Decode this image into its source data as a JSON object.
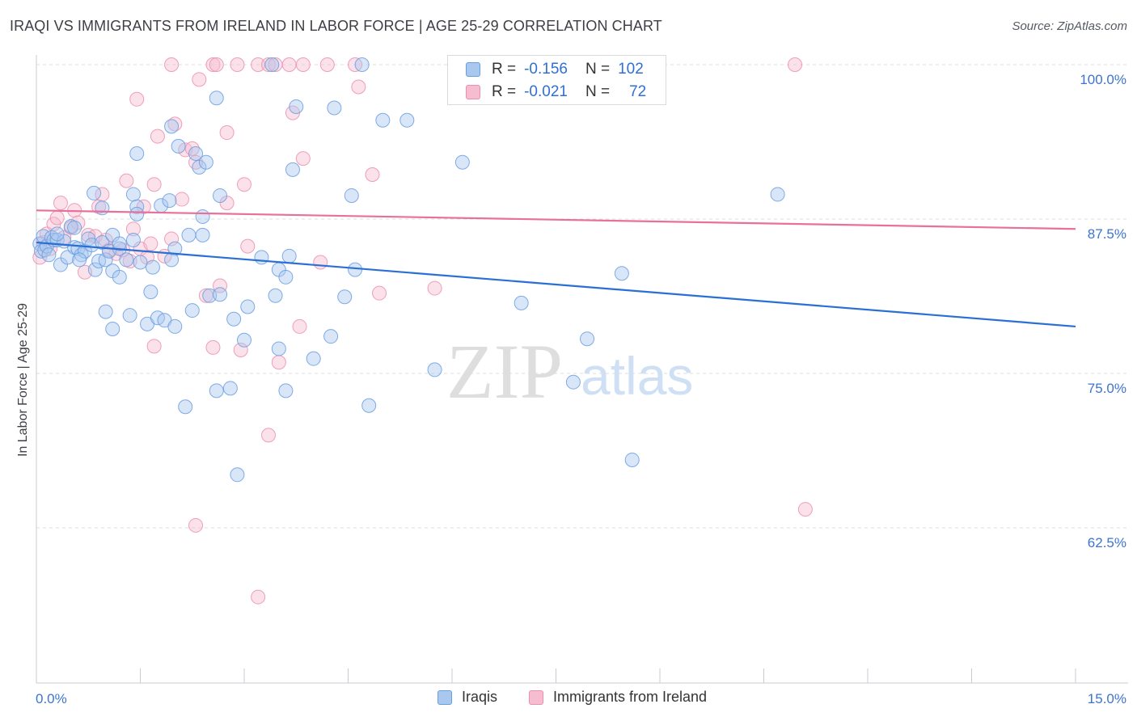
{
  "title": "IRAQI VS IMMIGRANTS FROM IRELAND IN LABOR FORCE | AGE 25-29 CORRELATION CHART",
  "source": "Source: ZipAtlas.com",
  "watermark": {
    "zip": "ZIP",
    "atlas": "atlas"
  },
  "legend": {
    "rows": [
      {
        "r_label": "R =",
        "r_value": "-0.156",
        "n_label": "N =",
        "n_value": "102"
      },
      {
        "r_label": "R =",
        "r_value": "-0.021",
        "n_label": "N =",
        "n_value": "72"
      }
    ]
  },
  "colors": {
    "iraqis_fill": "#a9c8f0",
    "iraqis_stroke": "#6b9ee0",
    "iraqis_line": "#2a6fd4",
    "ireland_fill": "#f6bcd0",
    "ireland_stroke": "#ec8fae",
    "ireland_line": "#e8709a",
    "tick_label": "#3d74d0",
    "grid": "#d9dce0"
  },
  "chart_data": {
    "type": "scatter",
    "title": "IRAQI VS IMMIGRANTS FROM IRELAND IN LABOR FORCE | AGE 25-29 CORRELATION CHART",
    "xlabel": "",
    "ylabel": "In Labor Force | Age 25-29",
    "xlim": [
      0,
      15
    ],
    "ylim": [
      50,
      102
    ],
    "x_tick_labels": [
      {
        "value": 0,
        "label": "0.0%"
      },
      {
        "value": 15,
        "label": "15.0%"
      }
    ],
    "y_tick_labels": [
      {
        "value": 62.5,
        "label": "62.5%"
      },
      {
        "value": 75.0,
        "label": "75.0%"
      },
      {
        "value": 87.5,
        "label": "87.5%"
      },
      {
        "value": 100.0,
        "label": "100.0%"
      }
    ],
    "grid": true,
    "legend_position": "top-center",
    "series": [
      {
        "name": "Iraqis",
        "trend": {
          "x": [
            0,
            15
          ],
          "y": [
            85.6,
            78.8
          ]
        },
        "points": [
          [
            0.05,
            85.5
          ],
          [
            0.07,
            84.9
          ],
          [
            0.1,
            86.1
          ],
          [
            0.12,
            85.0
          ],
          [
            0.15,
            85.3
          ],
          [
            0.18,
            84.6
          ],
          [
            0.22,
            86.0
          ],
          [
            0.25,
            85.8
          ],
          [
            0.3,
            85.8
          ],
          [
            0.35,
            83.8
          ],
          [
            0.4,
            85.7
          ],
          [
            0.45,
            84.4
          ],
          [
            0.5,
            86.9
          ],
          [
            0.55,
            85.2
          ],
          [
            0.6,
            85.1
          ],
          [
            0.65,
            84.6
          ],
          [
            0.7,
            84.9
          ],
          [
            0.75,
            85.9
          ],
          [
            0.8,
            85.4
          ],
          [
            0.85,
            83.4
          ],
          [
            0.9,
            84.1
          ],
          [
            0.95,
            85.6
          ],
          [
            1.0,
            84.2
          ],
          [
            1.05,
            84.9
          ],
          [
            1.1,
            83.3
          ],
          [
            1.2,
            85.1
          ],
          [
            1.3,
            84.2
          ],
          [
            1.4,
            85.8
          ],
          [
            1.5,
            84.0
          ],
          [
            0.95,
            88.4
          ],
          [
            0.83,
            89.6
          ],
          [
            1.4,
            89.5
          ],
          [
            1.8,
            88.6
          ],
          [
            1.45,
            88.5
          ],
          [
            1.92,
            89.0
          ],
          [
            1.95,
            95.0
          ],
          [
            1.45,
            92.8
          ],
          [
            2.05,
            93.4
          ],
          [
            2.3,
            92.8
          ],
          [
            2.35,
            91.7
          ],
          [
            2.45,
            92.1
          ],
          [
            2.6,
            97.3
          ],
          [
            2.65,
            89.4
          ],
          [
            2.4,
            86.2
          ],
          [
            2.2,
            86.2
          ],
          [
            2.0,
            85.1
          ],
          [
            1.95,
            84.2
          ],
          [
            1.2,
            82.8
          ],
          [
            1.0,
            80.0
          ],
          [
            1.1,
            78.6
          ],
          [
            1.35,
            79.7
          ],
          [
            1.6,
            79.0
          ],
          [
            1.75,
            79.5
          ],
          [
            1.85,
            79.3
          ],
          [
            2.0,
            78.8
          ],
          [
            2.25,
            80.1
          ],
          [
            2.5,
            81.3
          ],
          [
            2.65,
            81.4
          ],
          [
            2.85,
            79.4
          ],
          [
            3.05,
            80.4
          ],
          [
            1.65,
            81.6
          ],
          [
            2.4,
            87.7
          ],
          [
            3.0,
            77.7
          ],
          [
            3.25,
            84.4
          ],
          [
            3.5,
            83.4
          ],
          [
            3.6,
            82.8
          ],
          [
            3.65,
            84.5
          ],
          [
            3.5,
            77.0
          ],
          [
            3.6,
            73.6
          ],
          [
            2.6,
            73.6
          ],
          [
            2.8,
            73.8
          ],
          [
            2.15,
            72.3
          ],
          [
            2.9,
            66.8
          ],
          [
            4.0,
            76.2
          ],
          [
            4.25,
            78.0
          ],
          [
            4.45,
            81.2
          ],
          [
            4.6,
            83.4
          ],
          [
            4.8,
            72.4
          ],
          [
            3.4,
            100.0
          ],
          [
            4.7,
            100.0
          ],
          [
            3.75,
            96.6
          ],
          [
            3.7,
            91.5
          ],
          [
            4.3,
            96.5
          ],
          [
            4.55,
            89.4
          ],
          [
            5.0,
            95.5
          ],
          [
            5.35,
            95.5
          ],
          [
            5.75,
            75.3
          ],
          [
            6.15,
            92.1
          ],
          [
            7.0,
            80.7
          ],
          [
            7.75,
            74.3
          ],
          [
            7.95,
            77.8
          ],
          [
            8.45,
            83.1
          ],
          [
            8.6,
            68.0
          ],
          [
            10.7,
            89.5
          ],
          [
            1.1,
            86.2
          ],
          [
            0.62,
            84.2
          ],
          [
            1.68,
            83.6
          ],
          [
            3.45,
            81.3
          ],
          [
            1.45,
            87.9
          ],
          [
            0.3,
            86.3
          ],
          [
            0.55,
            86.8
          ],
          [
            1.2,
            85.5
          ]
        ]
      },
      {
        "name": "Immigrants from Ireland",
        "trend": {
          "x": [
            0,
            15
          ],
          "y": [
            88.2,
            86.7
          ]
        },
        "points": [
          [
            0.05,
            84.4
          ],
          [
            0.1,
            85.6
          ],
          [
            0.15,
            86.3
          ],
          [
            0.2,
            85.1
          ],
          [
            0.25,
            87.1
          ],
          [
            0.3,
            87.6
          ],
          [
            0.35,
            88.8
          ],
          [
            0.4,
            86.0
          ],
          [
            0.55,
            88.2
          ],
          [
            0.6,
            87.2
          ],
          [
            0.7,
            83.2
          ],
          [
            0.75,
            86.2
          ],
          [
            0.85,
            86.1
          ],
          [
            0.9,
            88.5
          ],
          [
            0.95,
            89.5
          ],
          [
            1.0,
            85.8
          ],
          [
            1.15,
            84.7
          ],
          [
            1.25,
            85.0
          ],
          [
            1.3,
            90.6
          ],
          [
            1.35,
            84.1
          ],
          [
            1.4,
            86.7
          ],
          [
            1.5,
            85.1
          ],
          [
            1.55,
            88.5
          ],
          [
            1.6,
            84.4
          ],
          [
            1.65,
            85.5
          ],
          [
            1.7,
            90.3
          ],
          [
            1.75,
            94.2
          ],
          [
            1.85,
            84.5
          ],
          [
            1.95,
            85.9
          ],
          [
            2.1,
            89.1
          ],
          [
            2.15,
            93.1
          ],
          [
            2.25,
            93.2
          ],
          [
            2.3,
            92.1
          ],
          [
            2.0,
            95.2
          ],
          [
            1.45,
            97.2
          ],
          [
            1.95,
            100.0
          ],
          [
            2.35,
            98.8
          ],
          [
            2.55,
            100.0
          ],
          [
            2.6,
            100.0
          ],
          [
            2.75,
            94.5
          ],
          [
            2.75,
            88.8
          ],
          [
            2.9,
            100.0
          ],
          [
            3.2,
            100.0
          ],
          [
            3.35,
            100.0
          ],
          [
            3.45,
            100.0
          ],
          [
            3.65,
            100.0
          ],
          [
            3.85,
            100.0
          ],
          [
            4.2,
            100.0
          ],
          [
            4.6,
            100.0
          ],
          [
            4.65,
            98.2
          ],
          [
            3.7,
            96.1
          ],
          [
            3.85,
            92.4
          ],
          [
            4.85,
            91.1
          ],
          [
            3.0,
            90.3
          ],
          [
            3.05,
            85.3
          ],
          [
            4.1,
            84.0
          ],
          [
            4.95,
            81.5
          ],
          [
            5.75,
            81.9
          ],
          [
            3.8,
            78.8
          ],
          [
            3.5,
            75.9
          ],
          [
            3.35,
            70.0
          ],
          [
            2.95,
            76.9
          ],
          [
            2.55,
            77.1
          ],
          [
            2.45,
            81.3
          ],
          [
            2.65,
            82.1
          ],
          [
            2.3,
            62.7
          ],
          [
            3.2,
            56.9
          ],
          [
            1.7,
            77.2
          ],
          [
            1.05,
            85.0
          ],
          [
            10.95,
            100.0
          ],
          [
            11.1,
            64.0
          ],
          [
            0.5,
            86.8
          ]
        ]
      }
    ]
  },
  "axis": {
    "ylabel": "In Labor Force | Age 25-29",
    "x_left_label": "0.0%",
    "x_right_label": "15.0%"
  },
  "bottom_legend": {
    "items": [
      {
        "label": "Iraqis"
      },
      {
        "label": "Immigrants from Ireland"
      }
    ]
  }
}
